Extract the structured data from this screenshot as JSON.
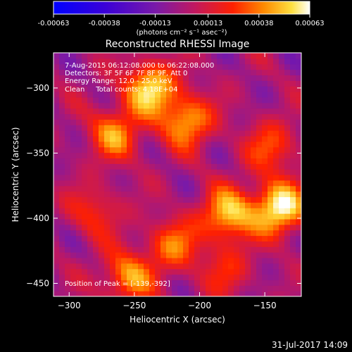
{
  "chart_data": {
    "type": "heatmap",
    "title": "Reconstructed RHESSI Image",
    "xlabel": "Heliocentric X (arcsec)",
    "ylabel": "Heliocentric Y (arcsec)",
    "xlim": [
      -312,
      -122
    ],
    "ylim": [
      -460,
      -273
    ],
    "x_ticks": [
      -300,
      -250,
      -200,
      -150
    ],
    "y_ticks": [
      -300,
      -350,
      -400,
      -450
    ],
    "colorbar": {
      "range": [
        -0.00063,
        0.00063
      ],
      "tick_labels": [
        "-0.00063",
        "-0.00038",
        "-0.00013",
        "0.00013",
        "0.00038",
        "0.00063"
      ],
      "unit_label": "(photons cm⁻² s⁻¹ asec⁻²)"
    },
    "annotations": [
      "7-Aug-2015 06:12:08.000 to 06:22:08.000",
      "Detectors: 3F 5F 6F 7F 8F 9F, Att 0",
      "Energy Range: 12.0 - 25.0 keV",
      "Clean     Total counts: 4.18E+04"
    ],
    "peak_label": "Position of Peak = [-139,-392]",
    "peak": [
      -139,
      -392
    ],
    "sources": [
      {
        "x": -139,
        "y": -392,
        "value": 0.00063
      },
      {
        "x": -178,
        "y": -397,
        "value": 0.00052
      },
      {
        "x": -238,
        "y": -300,
        "value": 0.00055
      },
      {
        "x": -210,
        "y": -325,
        "value": 0.00046
      },
      {
        "x": -265,
        "y": -335,
        "value": 0.0004
      },
      {
        "x": -145,
        "y": -345,
        "value": 0.0003
      },
      {
        "x": -220,
        "y": -420,
        "value": 0.00035
      },
      {
        "x": -255,
        "y": -445,
        "value": 0.00042
      },
      {
        "x": -280,
        "y": -395,
        "value": 0.00025
      },
      {
        "x": -180,
        "y": -440,
        "value": 0.00022
      }
    ],
    "grid": false,
    "colors": {
      "background": "#000000",
      "axes": "#ffffff"
    }
  },
  "footer": {
    "timestamp": "31-Jul-2017 14:09"
  }
}
